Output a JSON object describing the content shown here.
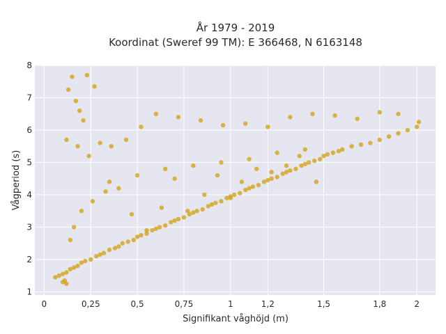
{
  "chart_data": {
    "type": "scatter",
    "title_line1": "År 1979 - 2019",
    "title_line2": "Koordinat (Sweref 99 TM): E 366468, N 6163148",
    "xlabel": "Signifikant våghöjd (m)",
    "ylabel": "Vågperiod (s)",
    "xlim": [
      -0.05,
      2.1
    ],
    "ylim": [
      0.9,
      8.0
    ],
    "x_ticks": [
      0,
      0.25,
      0.5,
      0.75,
      1,
      1.2,
      1.5,
      1.8,
      2
    ],
    "x_tick_labels": [
      "0",
      "0,25",
      "0,5",
      "0,75",
      "1",
      "1,2",
      "1,5",
      "1,8",
      "2"
    ],
    "y_ticks": [
      1,
      2,
      3,
      4,
      5,
      6,
      7,
      8
    ],
    "y_tick_labels": [
      "1",
      "2",
      "3",
      "4",
      "5",
      "6",
      "7",
      "8"
    ],
    "grid": true,
    "colors": {
      "marker": "#d4a418",
      "plot_background": "#e5e6ef",
      "grid": "#ffffff"
    },
    "series": [
      {
        "x": [
          0.06,
          0.08,
          0.1,
          0.12,
          0.14,
          0.16,
          0.18,
          0.2,
          0.22,
          0.25,
          0.28,
          0.3,
          0.32,
          0.35,
          0.38,
          0.4,
          0.42,
          0.45,
          0.48,
          0.5,
          0.52,
          0.55,
          0.58,
          0.6,
          0.62,
          0.65,
          0.68,
          0.7,
          0.72,
          0.75,
          0.78,
          0.8,
          0.82,
          0.85,
          0.88,
          0.9,
          0.92,
          0.95,
          0.98,
          1.0,
          1.02,
          1.05,
          1.08,
          1.1,
          1.12,
          1.15,
          1.18,
          1.2,
          1.22,
          1.25,
          1.28,
          1.3,
          1.32,
          1.35,
          1.38,
          1.4,
          1.42,
          1.45,
          1.48,
          1.5,
          1.52,
          1.55,
          1.58,
          1.6,
          1.65,
          1.7,
          1.75,
          1.8,
          1.85,
          1.9,
          1.95,
          2.0,
          2.01,
          0.13,
          0.15,
          0.17,
          0.19,
          0.21,
          0.23,
          0.27,
          0.12,
          0.18,
          0.24,
          0.3,
          0.36,
          0.44,
          0.52,
          0.6,
          0.72,
          0.84,
          0.96,
          1.08,
          1.2,
          1.32,
          1.44,
          1.56,
          1.68,
          1.8,
          1.9,
          0.35,
          0.5,
          0.65,
          0.8,
          0.95,
          1.1,
          1.25,
          1.4,
          0.1,
          0.11,
          0.12,
          0.14,
          0.16,
          0.2,
          0.26,
          0.33,
          0.4,
          0.47,
          0.55,
          0.63,
          0.7,
          0.77,
          0.86,
          0.93,
          1.0,
          1.06,
          1.14,
          1.22,
          1.3,
          1.37,
          1.46
        ],
        "y": [
          1.45,
          1.5,
          1.55,
          1.6,
          1.7,
          1.75,
          1.8,
          1.9,
          1.95,
          2.0,
          2.1,
          2.15,
          2.2,
          2.3,
          2.35,
          2.4,
          2.5,
          2.55,
          2.6,
          2.7,
          2.75,
          2.8,
          2.9,
          2.95,
          3.0,
          3.05,
          3.15,
          3.2,
          3.25,
          3.3,
          3.4,
          3.45,
          3.5,
          3.55,
          3.65,
          3.7,
          3.75,
          3.8,
          3.9,
          3.95,
          4.0,
          4.05,
          4.15,
          4.2,
          4.25,
          4.3,
          4.4,
          4.45,
          4.5,
          4.55,
          4.65,
          4.7,
          4.75,
          4.8,
          4.9,
          4.95,
          5.0,
          5.05,
          5.1,
          5.2,
          5.25,
          5.3,
          5.35,
          5.4,
          5.5,
          5.55,
          5.6,
          5.7,
          5.8,
          5.9,
          6.0,
          6.1,
          6.25,
          7.25,
          7.65,
          6.9,
          6.6,
          6.3,
          7.7,
          7.35,
          5.7,
          5.5,
          5.2,
          5.6,
          5.5,
          5.7,
          6.1,
          6.5,
          6.4,
          6.3,
          6.15,
          6.2,
          6.1,
          6.4,
          6.5,
          6.45,
          6.35,
          6.55,
          6.5,
          4.4,
          4.6,
          4.8,
          4.9,
          5.0,
          5.1,
          5.3,
          5.4,
          1.3,
          1.35,
          1.25,
          2.6,
          3.0,
          3.5,
          3.8,
          4.1,
          4.2,
          3.4,
          2.9,
          3.6,
          4.5,
          3.5,
          4.0,
          4.6,
          3.9,
          4.4,
          4.8,
          4.7,
          4.9,
          5.2,
          4.4
        ]
      }
    ]
  }
}
